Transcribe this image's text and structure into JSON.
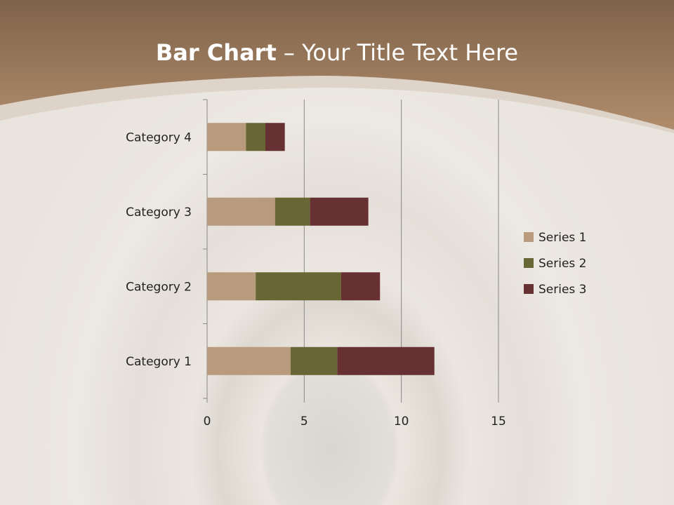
{
  "slide": {
    "title_bold": "Bar Chart",
    "title_rest": " – Your Title Text Here"
  },
  "chart_data": {
    "type": "bar",
    "orientation": "horizontal",
    "stacked": true,
    "categories": [
      "Category 1",
      "Category 2",
      "Category 3",
      "Category 4"
    ],
    "series": [
      {
        "name": "Series 1",
        "values": [
          4.3,
          2.5,
          3.5,
          2
        ],
        "color": "#b89a7c"
      },
      {
        "name": "Series 2",
        "values": [
          2.4,
          4.4,
          1.8,
          1
        ],
        "color": "#676634"
      },
      {
        "name": "Series 3",
        "values": [
          5,
          2,
          3,
          1
        ],
        "color": "#673133"
      }
    ],
    "xlim": [
      0,
      15
    ],
    "xticks": [
      0,
      5,
      10,
      15
    ],
    "grid": "vertical major",
    "legend": "right"
  }
}
